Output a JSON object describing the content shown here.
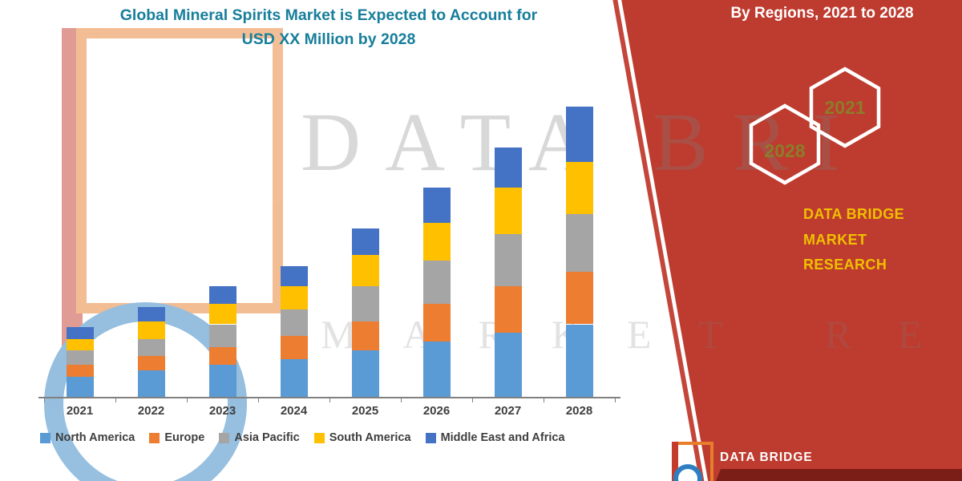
{
  "title": {
    "line1": "Global Mineral Spirits Market is Expected to Account for",
    "line2": "USD XX Million by 2028"
  },
  "top_right": {
    "label": "By Regions, 2021 to 2028"
  },
  "right_panel": {
    "hexagon_years": [
      "2021",
      "2028"
    ],
    "brand_line1": "DATA BRIDGE MARKET",
    "brand_line2": "RESEARCH"
  },
  "watermark": {
    "row1": "DATA BRI",
    "row2": "MARKET RE"
  },
  "footer": {
    "brand": "DATA BRIDGE"
  },
  "colors": {
    "accent_red": "#BE3B2F",
    "title_teal": "#177E9B",
    "brand_yellow": "#EFC000",
    "hexagon_year_text": "#8B7D2A",
    "axis_gray": "#808080",
    "label_gray": "#3F3F3F"
  },
  "chart_data": {
    "type": "bar",
    "stacked": true,
    "title": "Global Mineral Spirits Market is Expected to Account for USD XX Million by 2028",
    "subtitle": "By Regions, 2021 to 2028",
    "categories": [
      "2021",
      "2022",
      "2023",
      "2024",
      "2025",
      "2026",
      "2027",
      "2028"
    ],
    "series": [
      {
        "name": "North America",
        "color": "#5B9BD5",
        "values": [
          7,
          9,
          11,
          13,
          16,
          19,
          22,
          25
        ]
      },
      {
        "name": "Europe",
        "color": "#ED7D31",
        "values": [
          4,
          5,
          6,
          8,
          10,
          13,
          16,
          18
        ]
      },
      {
        "name": "Asia Pacific",
        "color": "#A5A5A5",
        "values": [
          5,
          6,
          8,
          9,
          12,
          15,
          18,
          20
        ]
      },
      {
        "name": "South America",
        "color": "#FFC000",
        "values": [
          4,
          6,
          7,
          8,
          11,
          13,
          16,
          18
        ]
      },
      {
        "name": "Middle East and Africa",
        "color": "#4472C4",
        "values": [
          4,
          5,
          6,
          7,
          9,
          12,
          14,
          19
        ]
      }
    ],
    "xlabel": "",
    "ylabel": "",
    "y_axis_visible": false,
    "legend_position": "bottom",
    "note": "No numeric y-axis shown in figure; values are relative units estimated from bar heights (2028 total = 100)"
  }
}
